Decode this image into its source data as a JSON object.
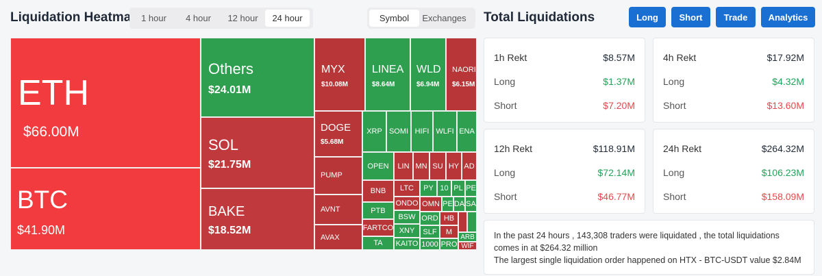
{
  "heatmap": {
    "title": "Liquidation Heatmap",
    "timeframes": [
      "1 hour",
      "4 hour",
      "12 hour",
      "24 hour"
    ],
    "active_timeframe": "24 hour",
    "views": [
      "Symbol",
      "Exchanges"
    ],
    "active_view": "Symbol",
    "tiles": {
      "eth": {
        "name": "ETH",
        "value": "$66.00M"
      },
      "btc": {
        "name": "BTC",
        "value": "$41.90M"
      },
      "others": {
        "name": "Others",
        "value": "$24.01M"
      },
      "sol": {
        "name": "SOL",
        "value": "$21.75M"
      },
      "bake": {
        "name": "BAKE",
        "value": "$18.52M"
      },
      "myx": {
        "name": "MYX",
        "value": "$10.08M"
      },
      "linea": {
        "name": "LINEA",
        "value": "$8.64M"
      },
      "wld": {
        "name": "WLD",
        "value": "$6.94M"
      },
      "naoris": {
        "name": "NAORIS",
        "value": "$6.15M"
      },
      "doge": {
        "name": "DOGE",
        "value": "$5.68M"
      },
      "pump": {
        "name": "PUMP"
      },
      "avnt": {
        "name": "AVNT"
      },
      "avax": {
        "name": "AVAX"
      },
      "xrp": {
        "name": "XRP"
      },
      "somi": {
        "name": "SOMI"
      },
      "hifi": {
        "name": "HIFI"
      },
      "wlfi": {
        "name": "WLFI"
      },
      "ena": {
        "name": "ENA"
      },
      "open": {
        "name": "OPEN"
      },
      "lin": {
        "name": "LIN"
      },
      "mn": {
        "name": "MN"
      },
      "su": {
        "name": "SU"
      },
      "hy": {
        "name": "HY"
      },
      "ad": {
        "name": "AD"
      },
      "bnb": {
        "name": "BNB"
      },
      "ptb": {
        "name": "PTB"
      },
      "fartco": {
        "name": "FARTCO"
      },
      "ta": {
        "name": "TA"
      },
      "ltc": {
        "name": "LTC"
      },
      "ondo": {
        "name": "ONDO"
      },
      "bsw": {
        "name": "BSW"
      },
      "xny": {
        "name": "XNY"
      },
      "kaito": {
        "name": "KAITO"
      },
      "py": {
        "name": "PY"
      },
      "t10": {
        "name": "10"
      },
      "pl": {
        "name": "PL"
      },
      "pe1": {
        "name": "PE"
      },
      "omn": {
        "name": "OMN"
      },
      "pe2": {
        "name": "PE"
      },
      "da": {
        "name": "DA"
      },
      "sa": {
        "name": "SA"
      },
      "ord": {
        "name": "ORD"
      },
      "slf": {
        "name": "SLF"
      },
      "hb": {
        "name": "HB"
      },
      "m": {
        "name": "M"
      },
      "t1000": {
        "name": "1000"
      },
      "pro": {
        "name": "PRO"
      },
      "arb": {
        "name": "ARB"
      },
      "wif": {
        "name": "WIF"
      }
    }
  },
  "liquidations": {
    "title": "Total Liquidations",
    "actions": [
      "Long",
      "Short",
      "Trade",
      "Analytics"
    ],
    "long_label": "Long",
    "short_label": "Short",
    "cards": [
      {
        "title": "1h Rekt",
        "total": "$8.57M",
        "long": "$1.37M",
        "short": "$7.20M"
      },
      {
        "title": "4h Rekt",
        "total": "$17.92M",
        "long": "$4.32M",
        "short": "$13.60M"
      },
      {
        "title": "12h Rekt",
        "total": "$118.91M",
        "long": "$72.14M",
        "short": "$46.77M"
      },
      {
        "title": "24h Rekt",
        "total": "$264.32M",
        "long": "$106.23M",
        "short": "$158.09M"
      }
    ],
    "summary_line1": "In the past 24 hours , 143,308 traders were liquidated , the total liquidations comes in at $264.32 million",
    "summary_line2": "The largest single liquidation order happened on HTX - BTC-USDT value $2.84M"
  },
  "colors": {
    "accent": "#1a6fd3",
    "long_green": "#22a35a",
    "short_red": "#e5484d",
    "tile_red": "#f23b3e",
    "tile_green": "#2e9e4f"
  }
}
